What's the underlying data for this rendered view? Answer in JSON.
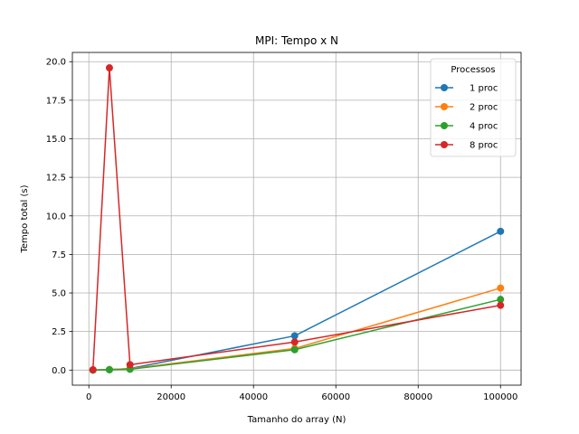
{
  "chart_data": {
    "type": "line",
    "title": "MPI: Tempo x N",
    "xlabel": "Tamanho do array (N)",
    "ylabel": "Tempo total (s)",
    "x": [
      1000,
      5000,
      10000,
      50000,
      100000
    ],
    "xlim": [
      -4000,
      105000
    ],
    "ylim": [
      -0.98,
      20.6
    ],
    "xticks": [
      0,
      20000,
      40000,
      60000,
      80000,
      100000
    ],
    "xtick_labels": [
      "0",
      "20000",
      "40000",
      "60000",
      "80000",
      "100000"
    ],
    "yticks": [
      0,
      2.5,
      5,
      7.5,
      10,
      12.5,
      15,
      17.5,
      20
    ],
    "ytick_labels": [
      "0.0",
      "2.5",
      "5.0",
      "7.5",
      "10.0",
      "12.5",
      "15.0",
      "17.5",
      "20.0"
    ],
    "grid": true,
    "legend": {
      "title": "Processos",
      "placement": "upper right"
    },
    "series": [
      {
        "name": "1 proc",
        "color": "#1f77b4",
        "values": [
          0.0,
          0.03,
          0.1,
          2.22,
          9.0
        ]
      },
      {
        "name": "2 proc",
        "color": "#ff7f0e",
        "values": [
          0.0,
          0.03,
          0.08,
          1.4,
          5.32
        ]
      },
      {
        "name": "4 proc",
        "color": "#2ca02c",
        "values": [
          0.0,
          0.02,
          0.05,
          1.32,
          4.58
        ]
      },
      {
        "name": "8 proc",
        "color": "#d62728",
        "values": [
          0.02,
          19.6,
          0.35,
          1.82,
          4.2
        ]
      }
    ]
  }
}
